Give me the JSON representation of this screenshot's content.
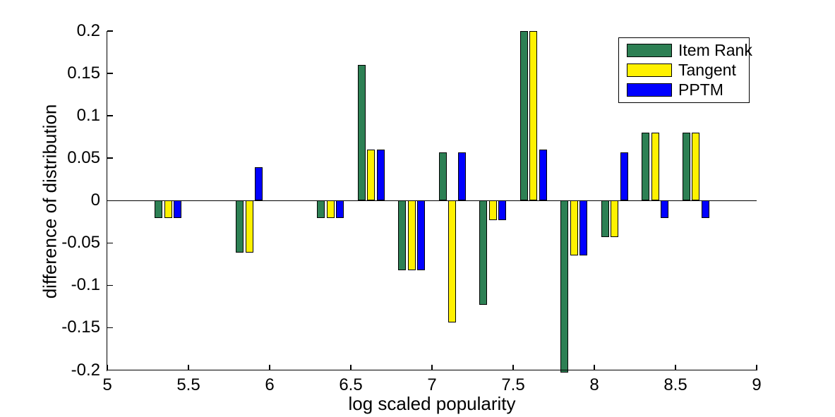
{
  "chart": {
    "title": "",
    "xlabel": "log scaled popularity",
    "ylabel": "difference of distribution"
  },
  "legend": {
    "position": "top-right",
    "entries": [
      {
        "label": "Item Rank",
        "color": "#2D8054"
      },
      {
        "label": "Tangent",
        "color": "#FFF100"
      },
      {
        "label": "PPTM",
        "color": "#0000FF"
      }
    ]
  },
  "chart_data": {
    "type": "bar",
    "title": "",
    "xlabel": "log scaled popularity",
    "ylabel": "difference of distribution",
    "xlim": [
      5,
      9
    ],
    "ylim": [
      -0.2,
      0.2
    ],
    "xticks": [
      5,
      5.5,
      6,
      6.5,
      7,
      7.5,
      8,
      8.5,
      9
    ],
    "xtick_labels": [
      "5",
      "5.5",
      "6",
      "6.5",
      "7",
      "7.5",
      "8",
      "8.5",
      "9"
    ],
    "yticks": [
      0.2,
      0.15,
      0.1,
      0.05,
      0,
      -0.05,
      -0.1,
      -0.15,
      -0.2
    ],
    "ytick_labels": [
      "0.2",
      "0.15",
      "0.1",
      "0.05",
      "0",
      "-0.05",
      "-0.1",
      "-0.15",
      "-0.2"
    ],
    "grid": false,
    "legend_position": "top-right",
    "categories": [
      5.375,
      5.875,
      6.375,
      6.625,
      6.875,
      7.125,
      7.375,
      7.625,
      7.875,
      8.125,
      8.375,
      8.625
    ],
    "series": [
      {
        "name": "Item Rank",
        "color": "#2D8054",
        "values": [
          -0.021,
          -0.061,
          -0.021,
          0.16,
          -0.082,
          0.057,
          -0.123,
          0.2,
          -0.2,
          -0.043,
          0.08,
          0.08
        ],
        "clipped_below": [
          false,
          false,
          false,
          false,
          false,
          false,
          false,
          false,
          true,
          false,
          false,
          false
        ]
      },
      {
        "name": "Tangent",
        "color": "#FFF100",
        "values": [
          -0.021,
          -0.061,
          -0.021,
          0.06,
          -0.082,
          -0.144,
          -0.023,
          0.2,
          -0.065,
          -0.043,
          0.08,
          0.08
        ],
        "clipped_below": [
          false,
          false,
          false,
          false,
          false,
          false,
          false,
          false,
          false,
          false,
          false,
          false
        ]
      },
      {
        "name": "PPTM",
        "color": "#0000FF",
        "values": [
          -0.021,
          0.039,
          -0.021,
          0.06,
          -0.082,
          0.057,
          -0.023,
          0.06,
          -0.065,
          0.057,
          -0.021,
          -0.021
        ],
        "clipped_below": [
          false,
          false,
          false,
          false,
          false,
          false,
          false,
          false,
          false,
          false,
          false,
          false
        ]
      }
    ],
    "note": "Item Rank bar at x=7.875 extends past the axis minimum and is clipped at -0.2."
  }
}
